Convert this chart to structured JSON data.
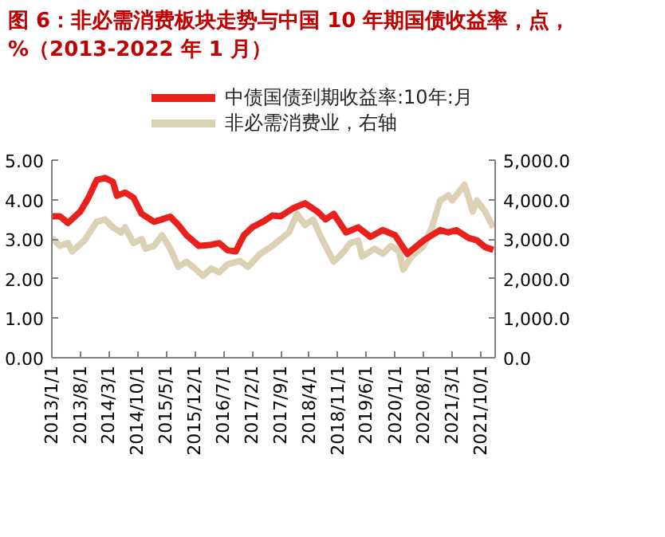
{
  "chart_data": {
    "type": "line",
    "title": "图 6：非必需消费板块走势与中国 10 年期国债收益率，点，%（2013-2022 年 1 月）",
    "xlim": [
      "2013-01",
      "2022-01-15"
    ],
    "xticks": [
      {
        "value": "2013-01-01",
        "label": "2013/1/1"
      },
      {
        "value": "2013-08-01",
        "label": "2013/8/1"
      },
      {
        "value": "2014-03-01",
        "label": "2014/3/1"
      },
      {
        "value": "2014-10-01",
        "label": "2014/10/1"
      },
      {
        "value": "2015-05-01",
        "label": "2015/5/1"
      },
      {
        "value": "2015-12-01",
        "label": "2015/12/1"
      },
      {
        "value": "2016-07-01",
        "label": "2016/7/1"
      },
      {
        "value": "2017-02-01",
        "label": "2017/2/1"
      },
      {
        "value": "2017-09-01",
        "label": "2017/9/1"
      },
      {
        "value": "2018-04-01",
        "label": "2018/4/1"
      },
      {
        "value": "2018-11-01",
        "label": "2018/11/1"
      },
      {
        "value": "2019-06-01",
        "label": "2019/6/1"
      },
      {
        "value": "2020-01-01",
        "label": "2020/1/1"
      },
      {
        "value": "2020-08-01",
        "label": "2020/8/1"
      },
      {
        "value": "2021-03-01",
        "label": "2021/3/1"
      },
      {
        "value": "2021-10-01",
        "label": "2021/10/1"
      }
    ],
    "ylim": [
      0,
      5
    ],
    "yticks": [
      {
        "value": 0,
        "label": "0.00"
      },
      {
        "value": 1,
        "label": "1.00"
      },
      {
        "value": 2,
        "label": "2.00"
      },
      {
        "value": 3,
        "label": "3.00"
      },
      {
        "value": 4,
        "label": "4.00"
      },
      {
        "value": 5,
        "label": "5.00"
      }
    ],
    "y2lim": [
      0,
      5000
    ],
    "y2ticks": [
      {
        "value": 0,
        "label": "0.0"
      },
      {
        "value": 1000,
        "label": "1,000.0"
      },
      {
        "value": 2000,
        "label": "2,000.0"
      },
      {
        "value": 3000,
        "label": "3,000.0"
      },
      {
        "value": 4000,
        "label": "4,000.0"
      },
      {
        "value": 5000,
        "label": "5,000.0"
      }
    ],
    "legend": "top",
    "grid": false,
    "series": [
      {
        "name": "中债国债到期收益率:10年:月",
        "color": "#e8211c",
        "x": [
          "2013-01",
          "2013-03",
          "2013-05",
          "2013-08",
          "2013-10",
          "2013-12",
          "2014-02",
          "2014-04",
          "2014-05",
          "2014-07",
          "2014-09",
          "2014-11",
          "2015-02",
          "2015-04",
          "2015-06",
          "2015-08",
          "2015-10",
          "2016-01",
          "2016-04",
          "2016-06",
          "2016-08",
          "2016-10",
          "2016-12",
          "2017-02",
          "2017-05",
          "2017-07",
          "2017-09",
          "2017-12",
          "2018-03",
          "2018-06",
          "2018-08",
          "2018-10",
          "2019-01",
          "2019-04",
          "2019-07",
          "2019-10",
          "2020-01",
          "2020-04",
          "2020-08",
          "2020-12",
          "2021-02",
          "2021-04",
          "2021-07",
          "2021-09",
          "2021-11",
          "2022-01"
        ],
        "values": [
          3.58,
          3.58,
          3.41,
          3.7,
          4.05,
          4.5,
          4.55,
          4.45,
          4.1,
          4.18,
          4.05,
          3.64,
          3.44,
          3.5,
          3.57,
          3.36,
          3.1,
          2.83,
          2.86,
          2.9,
          2.72,
          2.69,
          3.1,
          3.3,
          3.46,
          3.6,
          3.58,
          3.78,
          3.91,
          3.7,
          3.5,
          3.64,
          3.17,
          3.3,
          3.06,
          3.23,
          3.1,
          2.63,
          2.97,
          3.23,
          3.17,
          3.23,
          3.03,
          2.97,
          2.8,
          2.73
        ]
      },
      {
        "name": "非必需消费业，右轴",
        "color": "#ddd1b5",
        "axis": "y2",
        "x": [
          "2013-01",
          "2013-03",
          "2013-05",
          "2013-06",
          "2013-09",
          "2013-12",
          "2014-02",
          "2014-04",
          "2014-06",
          "2014-07",
          "2014-09",
          "2014-11",
          "2014-12",
          "2015-02",
          "2015-04",
          "2015-06",
          "2015-08",
          "2015-10",
          "2015-12",
          "2016-02",
          "2016-04",
          "2016-06",
          "2016-08",
          "2016-11",
          "2017-01",
          "2017-04",
          "2017-07",
          "2017-11",
          "2018-01",
          "2018-03",
          "2018-05",
          "2018-07",
          "2018-10",
          "2018-12",
          "2019-02",
          "2019-04",
          "2019-05",
          "2019-08",
          "2019-10",
          "2019-12",
          "2020-02",
          "2020-03",
          "2020-05",
          "2020-08",
          "2020-10",
          "2020-12",
          "2021-02",
          "2021-03",
          "2021-06",
          "2021-07",
          "2021-08",
          "2021-09",
          "2021-11",
          "2022-01"
        ],
        "values": [
          3040,
          2830,
          2900,
          2690,
          2970,
          3440,
          3500,
          3300,
          3170,
          3300,
          2900,
          3000,
          2760,
          2830,
          3100,
          2760,
          2300,
          2430,
          2260,
          2070,
          2260,
          2160,
          2360,
          2450,
          2300,
          2630,
          2830,
          3170,
          3640,
          3360,
          3500,
          3030,
          2430,
          2630,
          2900,
          2970,
          2560,
          2760,
          2630,
          2830,
          2690,
          2230,
          2560,
          2830,
          3300,
          3980,
          4110,
          3980,
          4380,
          4050,
          3700,
          3980,
          3700,
          3300
        ]
      }
    ]
  }
}
